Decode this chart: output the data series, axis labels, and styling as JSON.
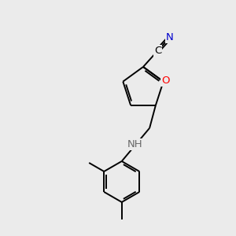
{
  "background_color": "#ebebeb",
  "bond_color": "#000000",
  "atom_colors": {
    "N_blue": "#0000cd",
    "O": "#ff0000",
    "H": "#696969",
    "C": "#000000"
  },
  "figsize": [
    3.0,
    3.0
  ],
  "dpi": 100,
  "lw": 1.4,
  "fontsize": 9.5
}
